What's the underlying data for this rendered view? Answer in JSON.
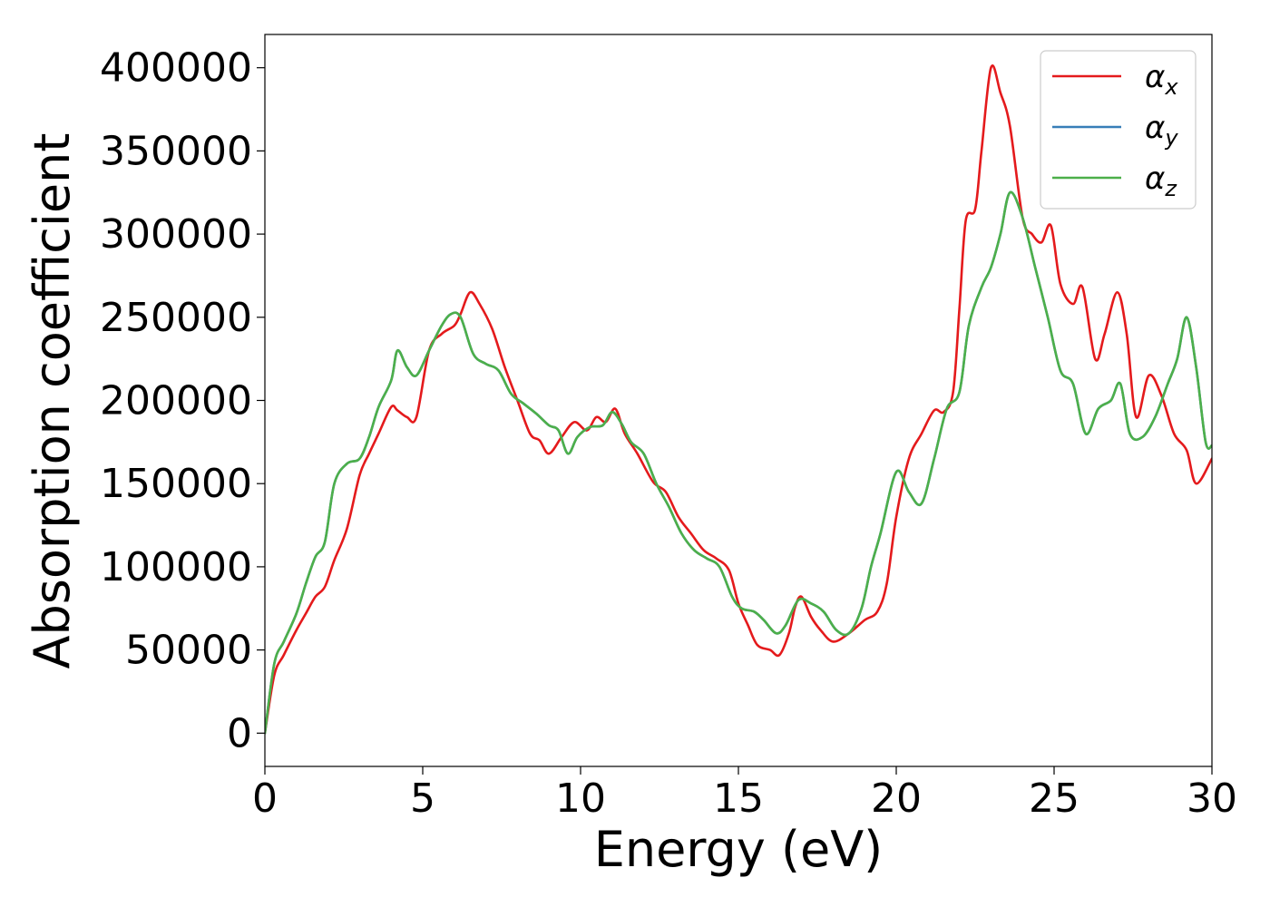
{
  "chart_data": {
    "type": "line",
    "title": "",
    "xlabel": "Energy (eV)",
    "ylabel": "Absorption coefficient",
    "xlim": [
      0,
      30
    ],
    "ylim": [
      -20000,
      420000
    ],
    "xticks": [
      0,
      5,
      10,
      15,
      20,
      25,
      30
    ],
    "yticks": [
      0,
      50000,
      100000,
      150000,
      200000,
      250000,
      300000,
      350000,
      400000
    ],
    "grid": false,
    "legend_position": "top-right",
    "series": [
      {
        "name": "α_x",
        "color": "#e41a1c",
        "x": [
          0,
          0.3,
          0.6,
          1,
          1.3,
          1.6,
          1.9,
          2.2,
          2.6,
          3,
          3.3,
          3.6,
          4,
          4.2,
          4.5,
          4.8,
          5.2,
          5.6,
          6,
          6.2,
          6.5,
          6.8,
          7.2,
          7.6,
          8,
          8.4,
          8.7,
          9,
          9.4,
          9.8,
          10.2,
          10.5,
          10.8,
          11.1,
          11.4,
          11.8,
          12.3,
          12.7,
          13.1,
          13.5,
          13.9,
          14.3,
          14.7,
          15,
          15.3,
          15.6,
          16,
          16.3,
          16.6,
          16.8,
          17,
          17.3,
          17.6,
          18,
          18.5,
          19,
          19.4,
          19.7,
          20,
          20.4,
          20.8,
          21.2,
          21.5,
          21.8,
          22,
          22.2,
          22.5,
          22.7,
          23,
          23.3,
          23.6,
          24,
          24.3,
          24.6,
          24.9,
          25.2,
          25.6,
          25.9,
          26.3,
          26.6,
          27,
          27.3,
          27.6,
          28,
          28.4,
          28.8,
          29.2,
          29.5,
          30
        ],
        "y": [
          0,
          35000,
          47000,
          62000,
          72000,
          82000,
          88000,
          104000,
          123000,
          155000,
          168000,
          180000,
          196000,
          194000,
          190000,
          190000,
          230000,
          240000,
          245000,
          252000,
          265000,
          258000,
          243000,
          220000,
          200000,
          180000,
          176000,
          168000,
          178000,
          187000,
          182000,
          190000,
          187000,
          195000,
          180000,
          168000,
          151000,
          145000,
          130000,
          120000,
          110000,
          105000,
          98000,
          78000,
          65000,
          53000,
          50000,
          47000,
          60000,
          76000,
          82000,
          70000,
          62000,
          55000,
          60000,
          68000,
          73000,
          90000,
          130000,
          165000,
          180000,
          194000,
          193000,
          205000,
          255000,
          308000,
          315000,
          350000,
          400000,
          385000,
          365000,
          310000,
          300000,
          295000,
          305000,
          270000,
          258000,
          268000,
          225000,
          240000,
          265000,
          240000,
          190000,
          215000,
          203000,
          180000,
          170000,
          150000,
          165000
        ]
      },
      {
        "name": "α_y",
        "color": "#377eb8",
        "x": [
          0,
          0.3,
          0.6,
          1,
          1.3,
          1.6,
          1.9,
          2.2,
          2.6,
          3,
          3.3,
          3.6,
          4,
          4.2,
          4.5,
          4.8,
          5.2,
          5.6,
          5.9,
          6.2,
          6.6,
          7,
          7.4,
          7.8,
          8.2,
          8.6,
          9,
          9.3,
          9.6,
          9.9,
          10.3,
          10.7,
          11,
          11.3,
          11.6,
          12,
          12.4,
          12.8,
          13.2,
          13.6,
          14,
          14.4,
          14.8,
          15.1,
          15.5,
          15.8,
          16.2,
          16.5,
          16.9,
          17.3,
          17.7,
          18.1,
          18.5,
          18.9,
          19.2,
          19.5,
          20,
          20.4,
          20.8,
          21.2,
          21.6,
          22,
          22.3,
          22.7,
          23,
          23.3,
          23.6,
          24,
          24.4,
          24.8,
          25.2,
          25.6,
          26,
          26.4,
          26.8,
          27.1,
          27.4,
          27.8,
          28.2,
          28.6,
          28.9,
          29.2,
          29.5,
          29.8,
          30
        ],
        "y": [
          0,
          42000,
          55000,
          72000,
          90000,
          106000,
          115000,
          150000,
          162000,
          165000,
          178000,
          196000,
          212000,
          230000,
          220000,
          215000,
          230000,
          245000,
          252000,
          250000,
          228000,
          222000,
          218000,
          204000,
          198000,
          192000,
          185000,
          182000,
          168000,
          178000,
          184000,
          185000,
          193000,
          186000,
          175000,
          168000,
          150000,
          136000,
          120000,
          110000,
          105000,
          100000,
          82000,
          75000,
          73000,
          68000,
          60000,
          65000,
          80000,
          78000,
          73000,
          62000,
          60000,
          75000,
          100000,
          120000,
          157000,
          145000,
          138000,
          165000,
          195000,
          205000,
          245000,
          268000,
          280000,
          300000,
          325000,
          310000,
          280000,
          250000,
          218000,
          210000,
          180000,
          195000,
          200000,
          210000,
          180000,
          178000,
          190000,
          210000,
          225000,
          250000,
          220000,
          175000,
          173000
        ]
      },
      {
        "name": "α_z",
        "color": "#4daf4a",
        "x": [
          0,
          0.3,
          0.6,
          1,
          1.3,
          1.6,
          1.9,
          2.2,
          2.6,
          3,
          3.3,
          3.6,
          4,
          4.2,
          4.5,
          4.8,
          5.2,
          5.6,
          5.9,
          6.2,
          6.6,
          7,
          7.4,
          7.8,
          8.2,
          8.6,
          9,
          9.3,
          9.6,
          9.9,
          10.3,
          10.7,
          11,
          11.3,
          11.6,
          12,
          12.4,
          12.8,
          13.2,
          13.6,
          14,
          14.4,
          14.8,
          15.1,
          15.5,
          15.8,
          16.2,
          16.5,
          16.9,
          17.3,
          17.7,
          18.1,
          18.5,
          18.9,
          19.2,
          19.5,
          20,
          20.4,
          20.8,
          21.2,
          21.6,
          22,
          22.3,
          22.7,
          23,
          23.3,
          23.6,
          24,
          24.4,
          24.8,
          25.2,
          25.6,
          26,
          26.4,
          26.8,
          27.1,
          27.4,
          27.8,
          28.2,
          28.6,
          28.9,
          29.2,
          29.5,
          29.8,
          30
        ],
        "y": [
          0,
          42000,
          55000,
          72000,
          90000,
          106000,
          115000,
          150000,
          162000,
          165000,
          178000,
          196000,
          212000,
          230000,
          220000,
          215000,
          230000,
          245000,
          252000,
          250000,
          228000,
          222000,
          218000,
          204000,
          198000,
          192000,
          185000,
          182000,
          168000,
          178000,
          184000,
          185000,
          193000,
          186000,
          175000,
          168000,
          150000,
          136000,
          120000,
          110000,
          105000,
          100000,
          82000,
          75000,
          73000,
          68000,
          60000,
          65000,
          80000,
          78000,
          73000,
          62000,
          60000,
          75000,
          100000,
          120000,
          157000,
          145000,
          138000,
          165000,
          195000,
          205000,
          245000,
          268000,
          280000,
          300000,
          325000,
          310000,
          280000,
          250000,
          218000,
          210000,
          180000,
          195000,
          200000,
          210000,
          180000,
          178000,
          190000,
          210000,
          225000,
          250000,
          220000,
          175000,
          173000
        ]
      }
    ]
  }
}
